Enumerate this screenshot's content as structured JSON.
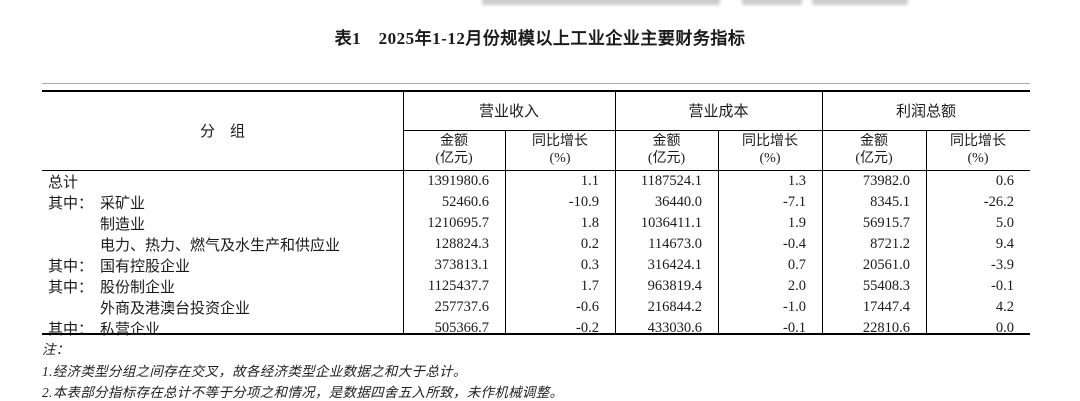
{
  "page": {
    "title": "表1　2025年1-12月份规模以上工业企业主要财务指标"
  },
  "table": {
    "group_column_header": "分　组",
    "column_groups": [
      {
        "label": "营业收入"
      },
      {
        "label": "营业成本"
      },
      {
        "label": "利润总额"
      }
    ],
    "sub_headers": [
      {
        "line1": "金额",
        "line2": "(亿元)"
      },
      {
        "line1": "同比增长",
        "line2": "(%)"
      },
      {
        "line1": "金额",
        "line2": "(亿元)"
      },
      {
        "line1": "同比增长",
        "line2": "(%)"
      },
      {
        "line1": "金额",
        "line2": "(亿元)"
      },
      {
        "line1": "同比增长",
        "line2": "(%)"
      }
    ],
    "rows": [
      {
        "prefix": "",
        "label": "总计",
        "values": [
          "1391980.6",
          "1.1",
          "1187524.1",
          "1.3",
          "73982.0",
          "0.6"
        ]
      },
      {
        "prefix": "其中：",
        "label": "采矿业",
        "values": [
          "52460.6",
          "-10.9",
          "36440.0",
          "-7.1",
          "8345.1",
          "-26.2"
        ]
      },
      {
        "prefix": "",
        "label": "制造业",
        "values": [
          "1210695.7",
          "1.8",
          "1036411.1",
          "1.9",
          "56915.7",
          "5.0"
        ]
      },
      {
        "prefix": "",
        "label": "电力、热力、燃气及水生产和供应业",
        "values": [
          "128824.3",
          "0.2",
          "114673.0",
          "-0.4",
          "8721.2",
          "9.4"
        ]
      },
      {
        "prefix": "其中：",
        "label": "国有控股企业",
        "values": [
          "373813.1",
          "0.3",
          "316424.1",
          "0.7",
          "20561.0",
          "-3.9"
        ]
      },
      {
        "prefix": "其中：",
        "label": "股份制企业",
        "values": [
          "1125437.7",
          "1.7",
          "963819.4",
          "2.0",
          "55408.3",
          "-0.1"
        ]
      },
      {
        "prefix": "",
        "label": "外商及港澳台投资企业",
        "values": [
          "257737.6",
          "-0.6",
          "216844.2",
          "-1.0",
          "17447.4",
          "4.2"
        ]
      },
      {
        "prefix": "其中：",
        "label": "私营企业",
        "values": [
          "505366.7",
          "-0.2",
          "433030.6",
          "-0.1",
          "22810.6",
          "0.0"
        ]
      }
    ]
  },
  "notes": {
    "heading": "注：",
    "items": [
      "1.经济类型分组之间存在交叉，故各经济类型企业数据之和大于总计。",
      "2.本表部分指标存在总计不等于分项之和情况，是数据四舍五入所致，未作机械调整。"
    ]
  }
}
